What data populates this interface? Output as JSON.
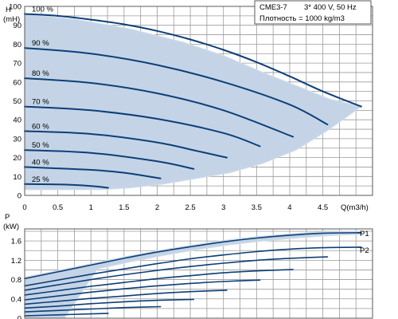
{
  "info": {
    "model": "CME3-7",
    "supply": "3* 400 V, 50 Hz",
    "density": "Плотность = 1000 kg/m3"
  },
  "colors": {
    "curve": "#0d3f78",
    "envelope_fill": "#c4d4e6",
    "grid": "#9a9a9a",
    "frame": "#5a5a5a"
  },
  "chart_data": [
    {
      "type": "line",
      "name": "head",
      "ylabel": "H",
      "yunit": "(mH)",
      "xlabel": "Q(m3/h)",
      "xlim": [
        0,
        5.25
      ],
      "ylim": [
        0,
        100
      ],
      "xticks": [
        "0",
        "0.5",
        "1",
        "1.5",
        "2",
        "2.5",
        "3",
        "3.5",
        "4",
        "4.5"
      ],
      "yticks": [
        "0",
        "10",
        "20",
        "30",
        "40",
        "50",
        "60",
        "70",
        "80",
        "90",
        "100"
      ],
      "grid": true,
      "envelope": [
        [
          0,
          96
        ],
        [
          0.8,
          93
        ],
        [
          1.6,
          88
        ],
        [
          2.4,
          81
        ],
        [
          3.0,
          74
        ],
        [
          3.6,
          65
        ],
        [
          4.1,
          58
        ],
        [
          4.6,
          51
        ],
        [
          5.08,
          47
        ],
        [
          4.6,
          35
        ],
        [
          4.1,
          24
        ],
        [
          3.6,
          17
        ],
        [
          3.1,
          12
        ],
        [
          2.6,
          9
        ],
        [
          2.1,
          6
        ],
        [
          1.6,
          4
        ],
        [
          1.15,
          3
        ],
        [
          0,
          3
        ]
      ],
      "series": [
        {
          "name": "100 %",
          "x": [
            0,
            0.5,
            1,
            1.5,
            2,
            2.5,
            3,
            3.5,
            4,
            4.5,
            5.08
          ],
          "y": [
            96,
            95,
            93,
            90.5,
            87,
            82.5,
            77,
            70.5,
            63,
            55,
            47
          ]
        },
        {
          "name": "90 %",
          "x": [
            0,
            1,
            2,
            3,
            4,
            4.57
          ],
          "y": [
            78,
            75,
            69,
            60,
            48,
            37.5
          ]
        },
        {
          "name": "80 %",
          "x": [
            0,
            1,
            2,
            3,
            4.05
          ],
          "y": [
            62,
            59.5,
            54,
            45,
            31
          ]
        },
        {
          "name": "70 %",
          "x": [
            0,
            1,
            2,
            3,
            3.55
          ],
          "y": [
            47,
            45,
            40.5,
            33,
            26
          ]
        },
        {
          "name": "60 %",
          "x": [
            0,
            1,
            2,
            2.6,
            3.05
          ],
          "y": [
            34,
            32.5,
            28,
            23.5,
            20
          ]
        },
        {
          "name": "50 %",
          "x": [
            0,
            1,
            2,
            2.55
          ],
          "y": [
            24,
            22.5,
            18,
            14
          ]
        },
        {
          "name": "40 %",
          "x": [
            0,
            1,
            1.5,
            2.05
          ],
          "y": [
            15,
            13.5,
            12,
            9
          ]
        },
        {
          "name": "25 %",
          "x": [
            0,
            0.5,
            1,
            1.26
          ],
          "y": [
            6,
            5.8,
            5,
            4
          ]
        }
      ],
      "curve_labels": [
        "100 %",
        "90 %",
        "80 %",
        "70 %",
        "60 %",
        "50 %",
        "40 %",
        "25 %"
      ]
    },
    {
      "type": "line",
      "name": "power",
      "ylabel": "P",
      "yunit": "(kW)",
      "xlim": [
        0,
        5.25
      ],
      "ylim": [
        0,
        1.85
      ],
      "yticks": [
        "0",
        "0.4",
        "0.8",
        "1.2",
        "1.6"
      ],
      "grid": true,
      "series": [
        {
          "name": "P1",
          "x": [
            0,
            0.5,
            1,
            1.5,
            2,
            2.5,
            3,
            3.5,
            4,
            4.5,
            5.08
          ],
          "y": [
            0.82,
            0.96,
            1.1,
            1.24,
            1.37,
            1.48,
            1.58,
            1.66,
            1.72,
            1.76,
            1.77
          ]
        },
        {
          "name": "P2",
          "x": [
            0,
            0.5,
            1,
            1.5,
            2,
            2.5,
            3,
            3.5,
            4,
            4.5,
            5.08
          ],
          "y": [
            0.67,
            0.79,
            0.91,
            1.02,
            1.13,
            1.23,
            1.31,
            1.38,
            1.43,
            1.46,
            1.47
          ]
        },
        {
          "name": "",
          "x": [
            0,
            0.5,
            1,
            1.5,
            2,
            2.5,
            3,
            3.5,
            4,
            4.57
          ],
          "y": [
            0.58,
            0.69,
            0.8,
            0.9,
            0.99,
            1.07,
            1.14,
            1.2,
            1.24,
            1.27
          ]
        },
        {
          "name": "",
          "x": [
            0,
            0.5,
            1,
            1.5,
            2,
            2.5,
            3,
            3.5,
            4.05
          ],
          "y": [
            0.48,
            0.57,
            0.66,
            0.74,
            0.82,
            0.88,
            0.94,
            0.98,
            1.01
          ]
        },
        {
          "name": "",
          "x": [
            0,
            0.5,
            1,
            1.5,
            2,
            2.5,
            3,
            3.55
          ],
          "y": [
            0.38,
            0.46,
            0.54,
            0.61,
            0.67,
            0.72,
            0.76,
            0.79
          ]
        },
        {
          "name": "",
          "x": [
            0,
            0.5,
            1,
            1.5,
            2,
            2.5,
            3.05
          ],
          "y": [
            0.29,
            0.35,
            0.41,
            0.46,
            0.51,
            0.55,
            0.58
          ]
        },
        {
          "name": "",
          "x": [
            0,
            0.5,
            1,
            1.5,
            2,
            2.55
          ],
          "y": [
            0.21,
            0.25,
            0.3,
            0.34,
            0.37,
            0.39
          ]
        },
        {
          "name": "",
          "x": [
            0,
            0.5,
            1,
            1.5,
            2.05
          ],
          "y": [
            0.13,
            0.16,
            0.19,
            0.22,
            0.24
          ]
        },
        {
          "name": "",
          "x": [
            0,
            0.5,
            1,
            1.26
          ],
          "y": [
            0.05,
            0.07,
            0.09,
            0.1
          ]
        }
      ],
      "envelope_upper": [
        [
          0,
          0.85
        ],
        [
          0.5,
          0.99
        ],
        [
          1,
          1.13
        ],
        [
          1.5,
          1.27
        ],
        [
          2,
          1.4
        ],
        [
          2.5,
          1.51
        ],
        [
          3,
          1.61
        ],
        [
          3.5,
          1.69
        ],
        [
          4,
          1.75
        ],
        [
          4.5,
          1.79
        ],
        [
          5.08,
          1.8
        ]
      ],
      "envelope_lower": [
        [
          5.08,
          1.74
        ],
        [
          4.6,
          1.71
        ],
        [
          4.1,
          1.66
        ],
        [
          3.6,
          1.6
        ],
        [
          3.1,
          1.52
        ],
        [
          2.6,
          1.42
        ],
        [
          2.1,
          1.3
        ],
        [
          1.6,
          1.17
        ],
        [
          1.1,
          1.02
        ],
        [
          0.6,
          0.0
        ],
        [
          0,
          0.0
        ]
      ],
      "curve_labels": [
        "P1",
        "P2"
      ]
    }
  ]
}
